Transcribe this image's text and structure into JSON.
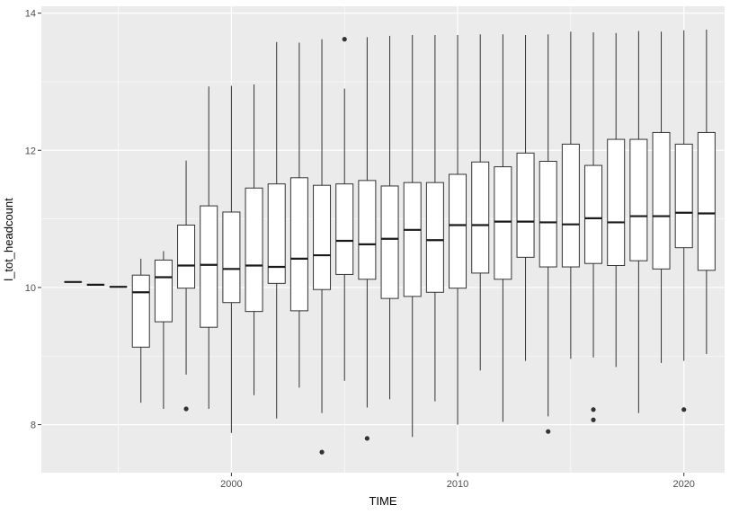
{
  "chart_data": {
    "type": "boxplot",
    "xlabel": "TIME",
    "ylabel": "l_tot_headcount",
    "xlim": [
      1991.6,
      2021.8
    ],
    "ylim": [
      7.3,
      14.1
    ],
    "x_ticks": [
      2000,
      2010,
      2020
    ],
    "y_ticks": [
      8,
      10,
      12,
      14
    ],
    "grid": true,
    "colors": {
      "panel": "#ebebeb",
      "grid": "#ffffff",
      "box_fill": "#ffffff",
      "box_stroke": "#333333",
      "median": "#1a1a1a",
      "outlier": "#333333",
      "tick_text": "#4d4d4d"
    },
    "boxes": [
      {
        "x": 1993,
        "lower": 10.08,
        "q1": 10.08,
        "median": 10.08,
        "q3": 10.08,
        "upper": 10.08,
        "outliers": []
      },
      {
        "x": 1994,
        "lower": 10.04,
        "q1": 10.04,
        "median": 10.04,
        "q3": 10.04,
        "upper": 10.04,
        "outliers": []
      },
      {
        "x": 1995,
        "lower": 10.01,
        "q1": 10.01,
        "median": 10.01,
        "q3": 10.01,
        "upper": 10.01,
        "outliers": []
      },
      {
        "x": 1996,
        "lower": 8.32,
        "q1": 9.13,
        "median": 9.93,
        "q3": 10.18,
        "upper": 10.42,
        "outliers": []
      },
      {
        "x": 1997,
        "lower": 8.23,
        "q1": 9.5,
        "median": 10.15,
        "q3": 10.4,
        "upper": 10.53,
        "outliers": []
      },
      {
        "x": 1998,
        "lower": 8.73,
        "q1": 9.99,
        "median": 10.32,
        "q3": 10.91,
        "upper": 11.85,
        "outliers": [
          8.23
        ]
      },
      {
        "x": 1999,
        "lower": 8.23,
        "q1": 9.42,
        "median": 10.33,
        "q3": 11.19,
        "upper": 12.93,
        "outliers": []
      },
      {
        "x": 2000,
        "lower": 7.88,
        "q1": 9.78,
        "median": 10.27,
        "q3": 11.1,
        "upper": 12.94,
        "outliers": []
      },
      {
        "x": 2001,
        "lower": 8.43,
        "q1": 9.65,
        "median": 10.32,
        "q3": 11.45,
        "upper": 12.96,
        "outliers": []
      },
      {
        "x": 2002,
        "lower": 8.09,
        "q1": 10.06,
        "median": 10.3,
        "q3": 11.51,
        "upper": 13.58,
        "outliers": []
      },
      {
        "x": 2003,
        "lower": 8.54,
        "q1": 9.66,
        "median": 10.42,
        "q3": 11.6,
        "upper": 13.57,
        "outliers": []
      },
      {
        "x": 2004,
        "lower": 8.17,
        "q1": 9.97,
        "median": 10.47,
        "q3": 11.49,
        "upper": 13.62,
        "outliers": [
          7.6
        ]
      },
      {
        "x": 2005,
        "lower": 8.64,
        "q1": 10.19,
        "median": 10.68,
        "q3": 11.51,
        "upper": 12.9,
        "outliers": [
          13.62
        ]
      },
      {
        "x": 2006,
        "lower": 8.25,
        "q1": 10.12,
        "median": 10.63,
        "q3": 11.56,
        "upper": 13.65,
        "outliers": [
          7.8
        ]
      },
      {
        "x": 2007,
        "lower": 8.37,
        "q1": 9.84,
        "median": 10.71,
        "q3": 11.48,
        "upper": 13.67,
        "outliers": []
      },
      {
        "x": 2008,
        "lower": 7.82,
        "q1": 9.87,
        "median": 10.84,
        "q3": 11.53,
        "upper": 13.68,
        "outliers": []
      },
      {
        "x": 2009,
        "lower": 8.34,
        "q1": 9.93,
        "median": 10.69,
        "q3": 11.53,
        "upper": 13.68,
        "outliers": []
      },
      {
        "x": 2010,
        "lower": 8.0,
        "q1": 9.99,
        "median": 10.91,
        "q3": 11.65,
        "upper": 13.68,
        "outliers": []
      },
      {
        "x": 2011,
        "lower": 8.79,
        "q1": 10.21,
        "median": 10.91,
        "q3": 11.83,
        "upper": 13.69,
        "outliers": []
      },
      {
        "x": 2012,
        "lower": 8.04,
        "q1": 10.12,
        "median": 10.96,
        "q3": 11.76,
        "upper": 13.69,
        "outliers": []
      },
      {
        "x": 2013,
        "lower": 8.93,
        "q1": 10.44,
        "median": 10.96,
        "q3": 11.96,
        "upper": 13.68,
        "outliers": []
      },
      {
        "x": 2014,
        "lower": 8.12,
        "q1": 10.3,
        "median": 10.95,
        "q3": 11.84,
        "upper": 13.69,
        "outliers": [
          7.9
        ]
      },
      {
        "x": 2015,
        "lower": 8.96,
        "q1": 10.3,
        "median": 10.92,
        "q3": 12.09,
        "upper": 13.73,
        "outliers": []
      },
      {
        "x": 2016,
        "lower": 8.98,
        "q1": 10.35,
        "median": 11.01,
        "q3": 11.78,
        "upper": 13.72,
        "outliers": [
          8.22,
          8.07
        ]
      },
      {
        "x": 2017,
        "lower": 8.84,
        "q1": 10.32,
        "median": 10.95,
        "q3": 12.16,
        "upper": 13.71,
        "outliers": []
      },
      {
        "x": 2018,
        "lower": 8.17,
        "q1": 10.39,
        "median": 11.04,
        "q3": 12.16,
        "upper": 13.74,
        "outliers": []
      },
      {
        "x": 2019,
        "lower": 8.9,
        "q1": 10.27,
        "median": 11.04,
        "q3": 12.26,
        "upper": 13.73,
        "outliers": []
      },
      {
        "x": 2020,
        "lower": 8.93,
        "q1": 10.58,
        "median": 11.09,
        "q3": 12.09,
        "upper": 13.75,
        "outliers": [
          8.22
        ]
      },
      {
        "x": 2021,
        "lower": 9.03,
        "q1": 10.25,
        "median": 11.08,
        "q3": 12.26,
        "upper": 13.76,
        "outliers": []
      }
    ]
  }
}
